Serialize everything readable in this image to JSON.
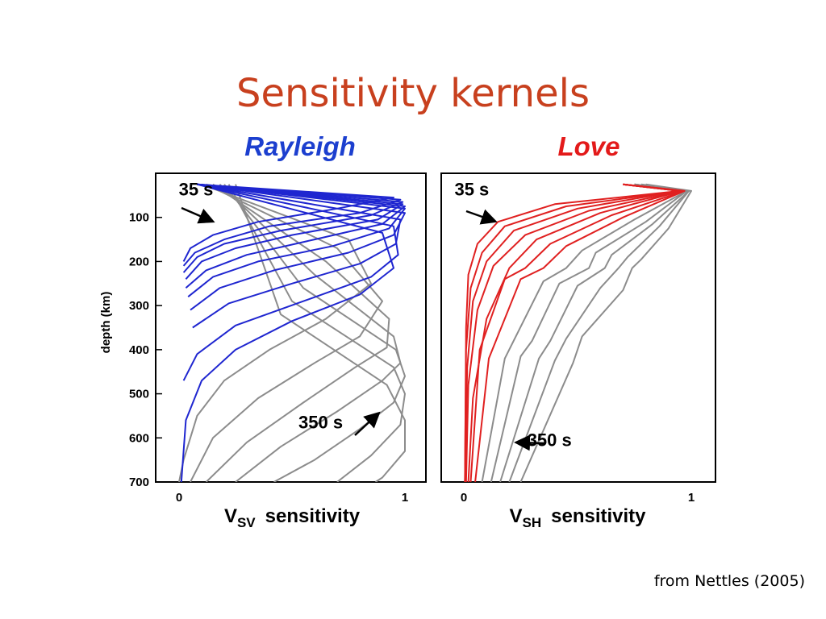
{
  "slide": {
    "title": "Sensitivity kernels",
    "credit": "from Nettles (2005)"
  },
  "colors": {
    "title": "#c8401e",
    "rayleigh_title": "#1c3fcf",
    "love_title": "#e31a1a",
    "rayleigh_short": "#1f26d0",
    "love_short": "#e02020",
    "long_period": "#8c8c8c"
  },
  "chart_data": [
    {
      "type": "line",
      "title": "Rayleigh",
      "xlabel_main": "V",
      "xlabel_sub": "SV",
      "xlabel_rest": "sensitivity",
      "ylabel": "depth (km)",
      "xlim": [
        0,
        1
      ],
      "ylim": [
        700,
        0
      ],
      "xticks": [
        "0",
        "1"
      ],
      "yticks": [
        "100",
        "200",
        "300",
        "400",
        "500",
        "600",
        "700"
      ],
      "annotations": [
        {
          "text": "35 s",
          "x": 0.07,
          "y": 50
        },
        {
          "text": "350 s",
          "x": 0.6,
          "y": 560
        }
      ],
      "series": [
        {
          "group": "blue",
          "points": [
            [
              0.08,
              25
            ],
            [
              0.95,
              55
            ],
            [
              0.7,
              80
            ],
            [
              0.35,
              110
            ],
            [
              0.15,
              140
            ],
            [
              0.05,
              170
            ],
            [
              0.02,
              200
            ]
          ]
        },
        {
          "group": "blue",
          "points": [
            [
              0.08,
              25
            ],
            [
              0.98,
              60
            ],
            [
              0.8,
              90
            ],
            [
              0.4,
              120
            ],
            [
              0.2,
              150
            ],
            [
              0.07,
              180
            ],
            [
              0.02,
              210
            ]
          ]
        },
        {
          "group": "blue",
          "points": [
            [
              0.08,
              25
            ],
            [
              0.99,
              65
            ],
            [
              0.85,
              95
            ],
            [
              0.45,
              130
            ],
            [
              0.2,
              160
            ],
            [
              0.08,
              190
            ],
            [
              0.02,
              225
            ]
          ]
        },
        {
          "group": "blue",
          "points": [
            [
              0.08,
              25
            ],
            [
              0.99,
              70
            ],
            [
              0.88,
              105
            ],
            [
              0.5,
              140
            ],
            [
              0.25,
              170
            ],
            [
              0.1,
              200
            ],
            [
              0.03,
              240
            ]
          ]
        },
        {
          "group": "blue",
          "points": [
            [
              0.08,
              25
            ],
            [
              1.0,
              75
            ],
            [
              0.9,
              115
            ],
            [
              0.6,
              150
            ],
            [
              0.3,
              185
            ],
            [
              0.12,
              220
            ],
            [
              0.03,
              260
            ]
          ]
        },
        {
          "group": "blue",
          "points": [
            [
              0.08,
              25
            ],
            [
              1.0,
              80
            ],
            [
              0.93,
              125
            ],
            [
              0.68,
              165
            ],
            [
              0.35,
              200
            ],
            [
              0.15,
              235
            ],
            [
              0.04,
              280
            ]
          ]
        },
        {
          "group": "blue",
          "points": [
            [
              0.08,
              25
            ],
            [
              1.0,
              90
            ],
            [
              0.95,
              140
            ],
            [
              0.75,
              180
            ],
            [
              0.42,
              220
            ],
            [
              0.18,
              260
            ],
            [
              0.05,
              310
            ]
          ]
        },
        {
          "group": "blue",
          "points": [
            [
              0.08,
              25
            ],
            [
              0.98,
              105
            ],
            [
              0.96,
              160
            ],
            [
              0.8,
              205
            ],
            [
              0.5,
              250
            ],
            [
              0.22,
              295
            ],
            [
              0.06,
              350
            ]
          ]
        },
        {
          "group": "blue",
          "points": [
            [
              0.08,
              25
            ],
            [
              0.95,
              120
            ],
            [
              0.97,
              185
            ],
            [
              0.85,
              235
            ],
            [
              0.55,
              290
            ],
            [
              0.25,
              345
            ],
            [
              0.08,
              410
            ],
            [
              0.02,
              470
            ]
          ]
        },
        {
          "group": "blue",
          "points": [
            [
              0.08,
              25
            ],
            [
              0.9,
              135
            ],
            [
              0.95,
              215
            ],
            [
              0.8,
              275
            ],
            [
              0.5,
              335
            ],
            [
              0.25,
              400
            ],
            [
              0.1,
              470
            ],
            [
              0.03,
              560
            ],
            [
              0.01,
              700
            ]
          ]
        },
        {
          "group": "gray",
          "points": [
            [
              0.1,
              25
            ],
            [
              0.75,
              150
            ],
            [
              0.85,
              250
            ],
            [
              0.65,
              330
            ],
            [
              0.4,
              400
            ],
            [
              0.2,
              470
            ],
            [
              0.08,
              550
            ],
            [
              0.02,
              650
            ],
            [
              0.0,
              700
            ]
          ]
        },
        {
          "group": "gray",
          "points": [
            [
              0.12,
              25
            ],
            [
              0.7,
              170
            ],
            [
              0.9,
              290
            ],
            [
              0.8,
              370
            ],
            [
              0.6,
              430
            ],
            [
              0.35,
              510
            ],
            [
              0.15,
              600
            ],
            [
              0.05,
              700
            ]
          ]
        },
        {
          "group": "gray",
          "points": [
            [
              0.15,
              25
            ],
            [
              0.65,
              200
            ],
            [
              0.93,
              330
            ],
            [
              0.92,
              395
            ],
            [
              0.78,
              440
            ],
            [
              0.55,
              520
            ],
            [
              0.3,
              610
            ],
            [
              0.12,
              700
            ]
          ]
        },
        {
          "group": "gray",
          "points": [
            [
              0.18,
              25
            ],
            [
              0.6,
              230
            ],
            [
              0.95,
              370
            ],
            [
              0.98,
              430
            ],
            [
              0.9,
              470
            ],
            [
              0.7,
              540
            ],
            [
              0.45,
              620
            ],
            [
              0.25,
              700
            ]
          ]
        },
        {
          "group": "gray",
          "points": [
            [
              0.2,
              25
            ],
            [
              0.55,
              260
            ],
            [
              0.96,
              400
            ],
            [
              1.0,
              460
            ],
            [
              0.95,
              520
            ],
            [
              0.8,
              580
            ],
            [
              0.6,
              650
            ],
            [
              0.42,
              700
            ]
          ]
        },
        {
          "group": "gray",
          "points": [
            [
              0.22,
              25
            ],
            [
              0.5,
              290
            ],
            [
              0.95,
              440
            ],
            [
              1.0,
              500
            ],
            [
              0.98,
              570
            ],
            [
              0.85,
              640
            ],
            [
              0.7,
              700
            ]
          ]
        },
        {
          "group": "gray",
          "points": [
            [
              0.25,
              25
            ],
            [
              0.45,
              320
            ],
            [
              0.92,
              480
            ],
            [
              1.0,
              560
            ],
            [
              1.0,
              630
            ],
            [
              0.9,
              690
            ],
            [
              0.87,
              700
            ]
          ]
        }
      ]
    },
    {
      "type": "line",
      "title": "Love",
      "xlabel_main": "V",
      "xlabel_sub": "SH",
      "xlabel_rest": "sensitivity",
      "xlim": [
        0,
        1
      ],
      "ylim": [
        700,
        0
      ],
      "xticks": [
        "0",
        "1"
      ],
      "annotations": [
        {
          "text": "35 s",
          "x": 0.03,
          "y": 50
        },
        {
          "text": "350 s",
          "x": 0.35,
          "y": 600
        }
      ],
      "series": [
        {
          "group": "red",
          "points": [
            [
              0.7,
              25
            ],
            [
              0.95,
              40
            ],
            [
              0.4,
              70
            ],
            [
              0.15,
              110
            ],
            [
              0.06,
              160
            ],
            [
              0.02,
              230
            ],
            [
              0.01,
              350
            ],
            [
              0.005,
              700
            ]
          ]
        },
        {
          "group": "red",
          "points": [
            [
              0.7,
              25
            ],
            [
              0.95,
              40
            ],
            [
              0.45,
              75
            ],
            [
              0.18,
              120
            ],
            [
              0.08,
              180
            ],
            [
              0.03,
              260
            ],
            [
              0.01,
              400
            ],
            [
              0.005,
              700
            ]
          ]
        },
        {
          "group": "red",
          "points": [
            [
              0.7,
              25
            ],
            [
              0.95,
              40
            ],
            [
              0.5,
              80
            ],
            [
              0.22,
              130
            ],
            [
              0.1,
              200
            ],
            [
              0.04,
              290
            ],
            [
              0.015,
              440
            ],
            [
              0.005,
              700
            ]
          ]
        },
        {
          "group": "red",
          "points": [
            [
              0.7,
              25
            ],
            [
              0.96,
              40
            ],
            [
              0.55,
              85
            ],
            [
              0.27,
              140
            ],
            [
              0.13,
              210
            ],
            [
              0.06,
              310
            ],
            [
              0.02,
              480
            ],
            [
              0.01,
              700
            ]
          ]
        },
        {
          "group": "red",
          "points": [
            [
              0.7,
              25
            ],
            [
              0.96,
              40
            ],
            [
              0.6,
              90
            ],
            [
              0.32,
              150
            ],
            [
              0.2,
              215
            ],
            [
              0.1,
              330
            ],
            [
              0.04,
              510
            ],
            [
              0.02,
              700
            ]
          ]
        },
        {
          "group": "red",
          "points": [
            [
              0.7,
              25
            ],
            [
              0.97,
              40
            ],
            [
              0.65,
              95
            ],
            [
              0.38,
              160
            ],
            [
              0.27,
              215
            ],
            [
              0.18,
              240
            ],
            [
              0.07,
              400
            ],
            [
              0.03,
              700
            ]
          ]
        },
        {
          "group": "red",
          "points": [
            [
              0.7,
              25
            ],
            [
              0.97,
              40
            ],
            [
              0.7,
              100
            ],
            [
              0.45,
              165
            ],
            [
              0.35,
              215
            ],
            [
              0.25,
              240
            ],
            [
              0.11,
              420
            ],
            [
              0.05,
              700
            ]
          ]
        },
        {
          "group": "gray",
          "points": [
            [
              0.75,
              25
            ],
            [
              0.98,
              40
            ],
            [
              0.75,
              105
            ],
            [
              0.52,
              175
            ],
            [
              0.45,
              215
            ],
            [
              0.35,
              245
            ],
            [
              0.18,
              420
            ],
            [
              0.08,
              700
            ]
          ]
        },
        {
          "group": "gray",
          "points": [
            [
              0.75,
              25
            ],
            [
              0.98,
              40
            ],
            [
              0.8,
              110
            ],
            [
              0.58,
              180
            ],
            [
              0.55,
              215
            ],
            [
              0.42,
              250
            ],
            [
              0.3,
              380
            ],
            [
              0.25,
              415
            ],
            [
              0.12,
              700
            ]
          ]
        },
        {
          "group": "gray",
          "points": [
            [
              0.75,
              25
            ],
            [
              0.99,
              40
            ],
            [
              0.83,
              115
            ],
            [
              0.65,
              185
            ],
            [
              0.62,
              215
            ],
            [
              0.5,
              255
            ],
            [
              0.38,
              380
            ],
            [
              0.33,
              420
            ],
            [
              0.16,
              700
            ]
          ]
        },
        {
          "group": "gray",
          "points": [
            [
              0.78,
              25
            ],
            [
              0.99,
              40
            ],
            [
              0.86,
              120
            ],
            [
              0.72,
              190
            ],
            [
              0.68,
              215
            ],
            [
              0.6,
              260
            ],
            [
              0.45,
              375
            ],
            [
              0.4,
              425
            ],
            [
              0.2,
              700
            ]
          ]
        },
        {
          "group": "gray",
          "points": [
            [
              0.8,
              25
            ],
            [
              1.0,
              40
            ],
            [
              0.9,
              125
            ],
            [
              0.78,
              195
            ],
            [
              0.74,
              215
            ],
            [
              0.7,
              265
            ],
            [
              0.52,
              370
            ],
            [
              0.48,
              430
            ],
            [
              0.25,
              700
            ]
          ]
        }
      ]
    }
  ]
}
